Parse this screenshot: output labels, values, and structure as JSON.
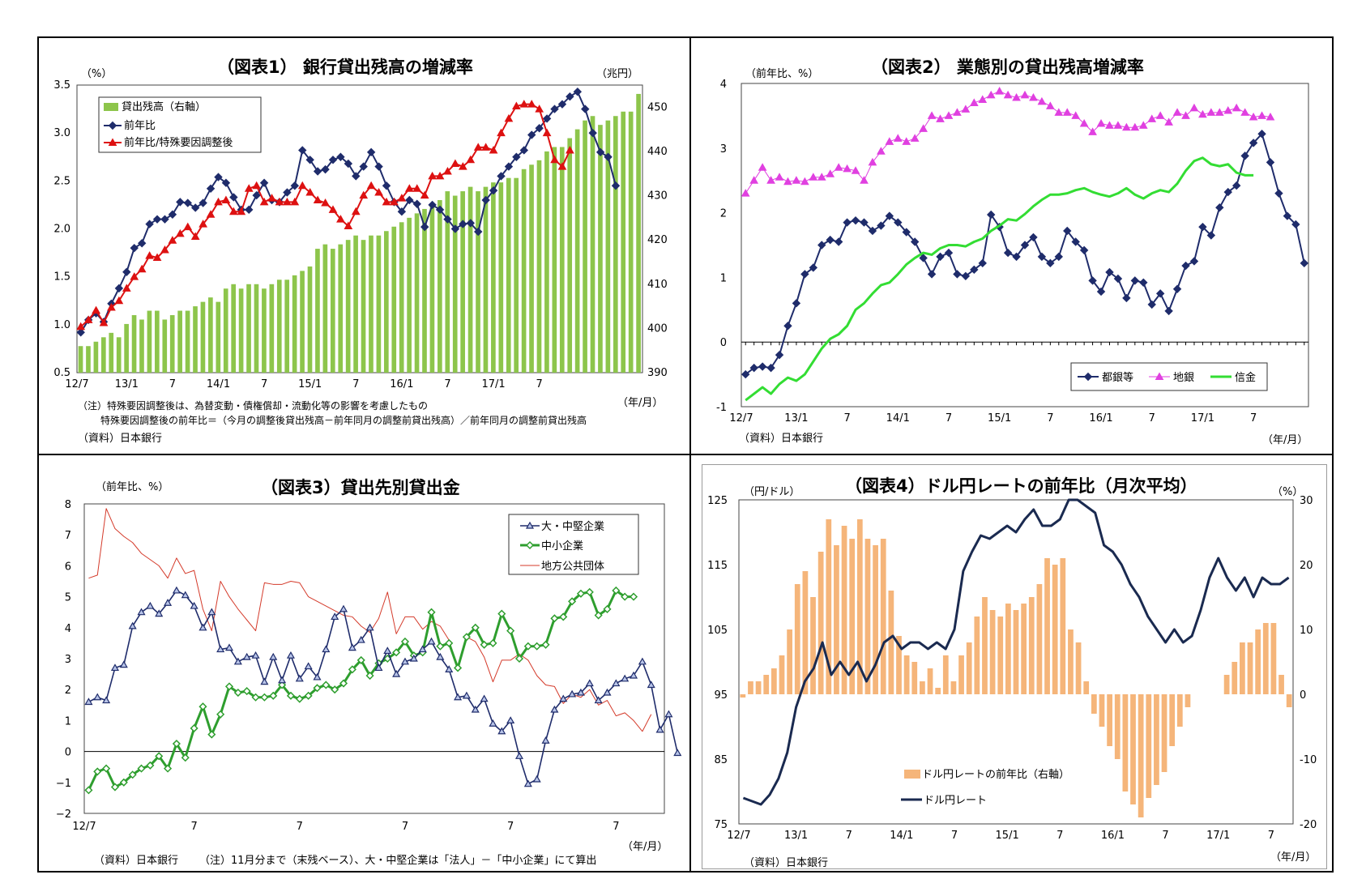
{
  "charts": {
    "c1": {
      "title": "（図表1） 銀行貸出残高の増減率",
      "ylabel_left": "（%）",
      "ylabel_right": "（兆円）",
      "xlabel": "（年/月）",
      "note1": "（注）特殊要因調整後は、為替変動・債権償却・流動化等の影響を考慮したもの",
      "note2": "特殊要因調整後の前年比＝（今月の調整後貸出残高－前年同月の調整前貸出残高）／前年同月の調整前貸出残高",
      "source": "（資料）日本銀行"
    },
    "c2": {
      "title": "（図表2） 業態別の貸出残高増減率",
      "ylabel_left": "（前年比、%）",
      "xlabel": "（年/月）",
      "source": "（資料）日本銀行"
    },
    "c3": {
      "title": "（図表3）貸出先別貸出金",
      "ylabel_left": "（前年比、%）",
      "xlabel": "（年/月）",
      "source": "（資料）日本銀行",
      "note": "（注）11月分まで（末残ベース）、大・中堅企業は「法人」－「中小企業」にて算出"
    },
    "c4": {
      "title": "（図表4）ドル円レートの前年比（月次平均）",
      "ylabel_left": "（円/ドル）",
      "ylabel_right": "（%）",
      "xlabel": "（年/月）",
      "source": "（資料）日本銀行"
    }
  },
  "colors": {
    "bar_green": "#8dc54b",
    "line_navy": "#1f2c6b",
    "line_red": "#dd1111",
    "line_magenta": "#e040e0",
    "line_green_bright": "#33dd33",
    "line_thin_red": "#d43a2a",
    "line_green_dark": "#2e9e2e",
    "bar_orange": "#f5b57a",
    "line_navy_dark": "#1a2a50"
  },
  "chart_data": [
    {
      "type": "bar+line",
      "title": "（図表1） 銀行貸出残高の増減率",
      "x_tick_labels": [
        "12/7",
        "13/1",
        "7",
        "14/1",
        "7",
        "15/1",
        "7",
        "16/1",
        "7",
        "17/1",
        "7"
      ],
      "ylim_left": [
        0.5,
        3.5
      ],
      "y_ticks_left": [
        "0.5",
        "1.0",
        "1.5",
        "2.0",
        "2.5",
        "3.0",
        "3.5"
      ],
      "ylim_right": [
        390,
        455
      ],
      "y_ticks_right": [
        "390",
        "400",
        "410",
        "420",
        "430",
        "440",
        "450"
      ],
      "legend": [
        "貸出残高（右軸）",
        "前年比",
        "前年比/特殊要因調整後"
      ],
      "series": [
        {
          "name": "貸出残高（右軸）",
          "axis": "right",
          "values": [
            396,
            396,
            397,
            398,
            399,
            398,
            401,
            403,
            402,
            404,
            404,
            402,
            403,
            404,
            404,
            405,
            406,
            407,
            406,
            409,
            410,
            409,
            410,
            410,
            409,
            410,
            411,
            411,
            412,
            413,
            414,
            418,
            419,
            418,
            419,
            420,
            421,
            420,
            421,
            421,
            422,
            423,
            424,
            425,
            426,
            427,
            428,
            429,
            431,
            430,
            431,
            432,
            431,
            432,
            433,
            433,
            434,
            434,
            436,
            437,
            438,
            440,
            441,
            441,
            443,
            445,
            447,
            448,
            446,
            447,
            448,
            449,
            449,
            453
          ]
        },
        {
          "name": "前年比",
          "values": [
            0.92,
            1.05,
            1.12,
            1.03,
            1.22,
            1.38,
            1.55,
            1.8,
            1.85,
            2.05,
            2.1,
            2.1,
            2.15,
            2.28,
            2.27,
            2.22,
            2.27,
            2.42,
            2.54,
            2.48,
            2.33,
            2.2,
            2.2,
            2.35,
            2.48,
            2.3,
            2.28,
            2.38,
            2.45,
            2.82,
            2.72,
            2.6,
            2.62,
            2.72,
            2.75,
            2.68,
            2.55,
            2.65,
            2.8,
            2.65,
            2.45,
            2.28,
            2.18,
            2.3,
            2.26,
            2.02,
            2.25,
            2.2,
            2.1,
            2.0,
            2.05,
            2.06,
            1.97,
            2.3,
            2.4,
            2.55,
            2.65,
            2.75,
            2.82,
            2.98,
            3.05,
            3.15,
            3.25,
            3.3,
            3.38,
            3.43,
            3.25,
            3.0,
            2.8,
            2.75,
            2.45
          ]
        },
        {
          "name": "前年比/特殊要因調整後",
          "values": [
            0.98,
            1.05,
            1.15,
            1.02,
            1.18,
            1.25,
            1.38,
            1.5,
            1.58,
            1.72,
            1.7,
            1.78,
            1.88,
            1.95,
            2.02,
            1.92,
            2.05,
            2.15,
            2.28,
            2.3,
            2.18,
            2.18,
            2.42,
            2.45,
            2.28,
            2.32,
            2.28,
            2.28,
            2.28,
            2.45,
            2.38,
            2.3,
            2.27,
            2.2,
            2.1,
            2.03,
            2.18,
            2.35,
            2.45,
            2.38,
            2.28,
            2.28,
            2.32,
            2.42,
            2.42,
            2.35,
            2.55,
            2.55,
            2.6,
            2.68,
            2.65,
            2.72,
            2.85,
            2.85,
            2.82,
            3.0,
            3.15,
            3.28,
            3.3,
            3.3,
            3.25,
            3.0,
            2.72,
            2.65,
            2.82
          ]
        }
      ]
    },
    {
      "type": "line",
      "title": "（図表2） 業態別の貸出残高増減率",
      "x_tick_labels": [
        "12/7",
        "13/1",
        "7",
        "14/1",
        "7",
        "15/1",
        "7",
        "16/1",
        "7",
        "17/1",
        "7"
      ],
      "ylim": [
        -1,
        4
      ],
      "y_ticks": [
        "-1",
        "0",
        "1",
        "2",
        "3",
        "4"
      ],
      "legend": [
        "都銀等",
        "地銀",
        "信金"
      ],
      "series": [
        {
          "name": "都銀等",
          "values": [
            -0.5,
            -0.4,
            -0.38,
            -0.4,
            -0.2,
            0.25,
            0.6,
            1.05,
            1.15,
            1.5,
            1.58,
            1.55,
            1.85,
            1.88,
            1.85,
            1.72,
            1.8,
            1.95,
            1.85,
            1.7,
            1.55,
            1.3,
            1.05,
            1.32,
            1.38,
            1.05,
            1.02,
            1.12,
            1.22,
            1.97,
            1.78,
            1.38,
            1.32,
            1.5,
            1.62,
            1.32,
            1.22,
            1.32,
            1.72,
            1.55,
            1.42,
            0.95,
            0.78,
            1.08,
            0.98,
            0.68,
            0.95,
            0.92,
            0.58,
            0.75,
            0.48,
            0.82,
            1.18,
            1.25,
            1.78,
            1.65,
            2.08,
            2.32,
            2.42,
            2.88,
            3.08,
            3.22,
            2.78,
            2.3,
            1.95,
            1.82,
            1.22
          ]
        },
        {
          "name": "地銀",
          "values": [
            2.3,
            2.5,
            2.7,
            2.5,
            2.55,
            2.48,
            2.5,
            2.48,
            2.55,
            2.55,
            2.6,
            2.7,
            2.68,
            2.65,
            2.5,
            2.78,
            2.95,
            3.1,
            3.15,
            3.1,
            3.15,
            3.3,
            3.5,
            3.45,
            3.5,
            3.55,
            3.6,
            3.7,
            3.75,
            3.82,
            3.88,
            3.82,
            3.78,
            3.82,
            3.78,
            3.72,
            3.65,
            3.55,
            3.55,
            3.5,
            3.38,
            3.25,
            3.38,
            3.35,
            3.35,
            3.32,
            3.32,
            3.35,
            3.45,
            3.5,
            3.4,
            3.55,
            3.5,
            3.62,
            3.52,
            3.55,
            3.55,
            3.58,
            3.62,
            3.55,
            3.48,
            3.5,
            3.48
          ]
        },
        {
          "name": "信金",
          "values": [
            -0.9,
            -0.8,
            -0.7,
            -0.8,
            -0.65,
            -0.55,
            -0.6,
            -0.5,
            -0.3,
            -0.1,
            0.05,
            0.12,
            0.25,
            0.5,
            0.6,
            0.75,
            0.88,
            0.92,
            1.05,
            1.2,
            1.3,
            1.38,
            1.35,
            1.45,
            1.5,
            1.5,
            1.48,
            1.55,
            1.6,
            1.72,
            1.8,
            1.9,
            1.88,
            1.98,
            2.1,
            2.2,
            2.28,
            2.28,
            2.3,
            2.35,
            2.38,
            2.32,
            2.28,
            2.25,
            2.3,
            2.38,
            2.28,
            2.22,
            2.3,
            2.35,
            2.32,
            2.45,
            2.65,
            2.8,
            2.85,
            2.75,
            2.72,
            2.75,
            2.62,
            2.58,
            2.58
          ]
        }
      ]
    },
    {
      "type": "line",
      "title": "（図表3）貸出先別貸出金",
      "x_tick_labels": [
        "12/7",
        "7",
        "7",
        "7",
        "7",
        "7"
      ],
      "ylim": [
        -2,
        8
      ],
      "y_ticks": [
        "−2",
        "−1",
        "0",
        "1",
        "2",
        "3",
        "4",
        "5",
        "6",
        "7",
        "8"
      ],
      "legend": [
        "大・中堅企業",
        "中小企業",
        "地方公共団体"
      ],
      "series": [
        {
          "name": "大・中堅企業",
          "values": [
            1.6,
            1.75,
            1.65,
            2.7,
            2.8,
            4.05,
            4.5,
            4.7,
            4.45,
            4.8,
            5.2,
            5.05,
            4.7,
            4.0,
            4.5,
            3.3,
            3.35,
            2.9,
            3.05,
            3.1,
            2.25,
            3.05,
            2.3,
            3.1,
            2.35,
            2.75,
            2.4,
            3.3,
            4.35,
            4.6,
            3.35,
            3.6,
            4.0,
            2.7,
            3.25,
            2.5,
            2.9,
            3.0,
            3.3,
            3.55,
            3.05,
            2.65,
            1.75,
            1.8,
            1.35,
            1.7,
            0.9,
            0.65,
            1.0,
            -0.15,
            -1.05,
            -0.9,
            0.35,
            1.35,
            1.7,
            1.85,
            1.9,
            2.2,
            1.65,
            1.9,
            2.2,
            2.35,
            2.45,
            2.9,
            2.15,
            0.7,
            1.2,
            -0.05
          ]
        },
        {
          "name": "中小企業",
          "values": [
            -1.25,
            -0.65,
            -0.55,
            -1.15,
            -1.0,
            -0.75,
            -0.55,
            -0.45,
            -0.15,
            -0.55,
            0.25,
            -0.2,
            0.75,
            1.45,
            0.55,
            1.2,
            2.1,
            1.9,
            1.95,
            1.75,
            1.75,
            1.8,
            2.15,
            1.8,
            1.7,
            1.8,
            2.05,
            2.15,
            2.0,
            2.2,
            2.65,
            2.95,
            2.45,
            2.85,
            3.0,
            3.2,
            3.55,
            3.1,
            3.2,
            4.5,
            3.4,
            3.5,
            2.7,
            3.7,
            4.0,
            3.45,
            3.5,
            4.45,
            3.9,
            3.0,
            3.4,
            3.4,
            3.45,
            4.3,
            4.35,
            4.85,
            5.1,
            5.15,
            4.4,
            4.6,
            5.2,
            5.0,
            5.0
          ]
        },
        {
          "name": "地方公共団体",
          "values": [
            5.6,
            5.7,
            7.85,
            7.2,
            6.95,
            6.75,
            6.4,
            6.2,
            6.0,
            5.6,
            6.25,
            5.75,
            5.85,
            4.6,
            3.9,
            5.5,
            5.0,
            4.6,
            4.25,
            3.9,
            5.45,
            5.4,
            5.4,
            5.5,
            5.45,
            5.0,
            4.85,
            4.7,
            4.55,
            4.4,
            4.35,
            4.05,
            3.85,
            4.3,
            5.15,
            3.8,
            4.35,
            4.35,
            3.95,
            4.2,
            4.05,
            3.6,
            2.65,
            3.7,
            3.55,
            3.05,
            2.25,
            2.95,
            2.95,
            3.15,
            2.95,
            2.45,
            2.15,
            2.1,
            1.55,
            1.85,
            1.75,
            2.0,
            1.5,
            1.65,
            1.15,
            1.25,
            1.0,
            0.65,
            1.2
          ]
        }
      ]
    },
    {
      "type": "bar+line",
      "title": "（図表4）ドル円レートの前年比（月次平均）",
      "x_tick_labels": [
        "12/7",
        "13/1",
        "7",
        "14/1",
        "7",
        "15/1",
        "7",
        "16/1",
        "7",
        "17/1",
        "7"
      ],
      "ylim_left": [
        75,
        125
      ],
      "y_ticks_left": [
        "75",
        "85",
        "95",
        "105",
        "115",
        "125"
      ],
      "ylim_right": [
        -20,
        30
      ],
      "y_ticks_right": [
        "-20",
        "-10",
        "0",
        "10",
        "20",
        "30"
      ],
      "legend": [
        "ドル円レートの前年比（右軸）",
        "ドル円レート"
      ],
      "series": [
        {
          "name": "ドル円レートの前年比（右軸）",
          "axis": "right",
          "values": [
            -0.5,
            2,
            2,
            3,
            4,
            6,
            10,
            17,
            19,
            15,
            22,
            27,
            23,
            26,
            24,
            27,
            24,
            23,
            24,
            16,
            9,
            6,
            5,
            2,
            4,
            1,
            6,
            2,
            6,
            8,
            12,
            15,
            13,
            12,
            14,
            13,
            14,
            15,
            17,
            21,
            20,
            21,
            10,
            8,
            2,
            -3,
            -5,
            -8,
            -10,
            -15,
            -17,
            -19,
            -16,
            -14,
            -12,
            -8,
            -5,
            -2,
            0,
            0,
            0,
            0,
            3,
            5,
            8,
            8,
            10,
            11,
            11,
            3,
            -2
          ]
        },
        {
          "name": "ドル円レート",
          "values": [
            79,
            78.5,
            78,
            79.5,
            82,
            86,
            93,
            97,
            99,
            103,
            98,
            100,
            98,
            100,
            97,
            99.5,
            103,
            104,
            102,
            103,
            103,
            102,
            103,
            102,
            105,
            114,
            117,
            119.5,
            119,
            120,
            121,
            120,
            122,
            123.5,
            121,
            121,
            122,
            125,
            125,
            124,
            123,
            118,
            117,
            115,
            112,
            110,
            107,
            105,
            103,
            105,
            103,
            104,
            108,
            113,
            116,
            113,
            111,
            113,
            110,
            113,
            112,
            112,
            113
          ]
        }
      ]
    }
  ]
}
